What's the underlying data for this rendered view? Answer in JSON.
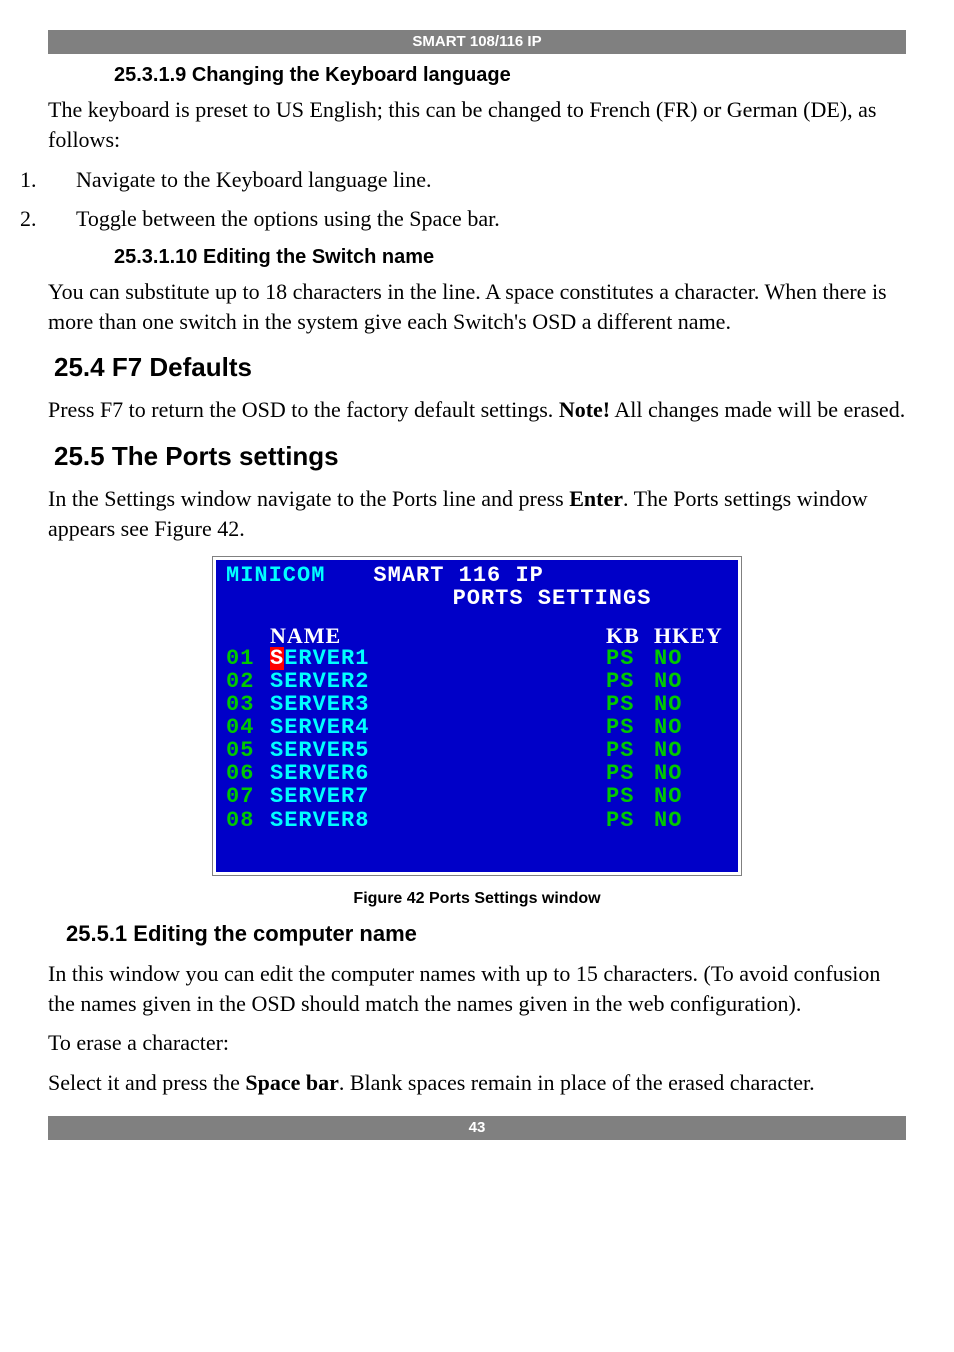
{
  "header_bar": "SMART 108/116 IP",
  "footer_bar": "43",
  "sections": {
    "h4_1": "25.3.1.9 Changing the Keyboard language",
    "p1": "The keyboard is preset to US English; this can be changed to French (FR) or German (DE), as follows:",
    "ol1_n": "1.",
    "ol1_t": "Navigate to the Keyboard language line.",
    "ol2_n": "2.",
    "ol2_t": "Toggle between the options using the Space bar.",
    "h4_2": "25.3.1.10 Editing the Switch name",
    "p2": "You can substitute up to 18 characters in the line. A space constitutes a character. When there is more than one switch in the system give each Switch's OSD a different name.",
    "h2_1": "25.4 F7 Defaults",
    "p3a": "Press F7 to return the OSD to the factory default settings. ",
    "p3b": "Note!",
    "p3c": " All changes made will be erased.",
    "h2_2": "25.5 The Ports settings",
    "p4a": "In the Settings window navigate to the Ports line and press ",
    "p4b": "Enter",
    "p4c": ". The Ports settings window appears see Figure 42.",
    "caption": "Figure 42 Ports Settings window",
    "h3_1": "25.5.1 Editing the computer name",
    "p5": "In this window you can edit the computer names with up to 15 characters. (To avoid confusion the names given in the OSD should match the names given in the web configuration).",
    "p6": "To erase a character:",
    "p7a": "Select it and press the ",
    "p7b": "Space bar",
    "p7c": ". Blank spaces remain in place of the erased character."
  },
  "osd": {
    "brand": "MINICOM",
    "title1": "SMART 116 IP",
    "title2": "PORTS SETTINGS",
    "headers": {
      "name": "NAME",
      "kb": "KB",
      "hkey": "HKEY"
    },
    "colors": {
      "background": "#0000c8",
      "brand": "#00ffff",
      "title": "#ffffff",
      "header_text": "#ffffff",
      "num": "#00c800",
      "name": "#00ffff",
      "kb": "#00c800",
      "hkey": "#00c800",
      "cursor_bg": "#ff0000",
      "cursor_fg": "#ffffff"
    },
    "rows": [
      {
        "num": "01",
        "name": "SERVER1",
        "kb": "PS",
        "hkey": "NO",
        "selected": true
      },
      {
        "num": "02",
        "name": "SERVER2",
        "kb": "PS",
        "hkey": "NO",
        "selected": false
      },
      {
        "num": "03",
        "name": "SERVER3",
        "kb": "PS",
        "hkey": "NO",
        "selected": false
      },
      {
        "num": "04",
        "name": "SERVER4",
        "kb": "PS",
        "hkey": "NO",
        "selected": false
      },
      {
        "num": "05",
        "name": "SERVER5",
        "kb": "PS",
        "hkey": "NO",
        "selected": false
      },
      {
        "num": "06",
        "name": "SERVER6",
        "kb": "PS",
        "hkey": "NO",
        "selected": false
      },
      {
        "num": "07",
        "name": "SERVER7",
        "kb": "PS",
        "hkey": "NO",
        "selected": false
      },
      {
        "num": "08",
        "name": "SERVER8",
        "kb": "PS",
        "hkey": "NO",
        "selected": false
      }
    ]
  }
}
